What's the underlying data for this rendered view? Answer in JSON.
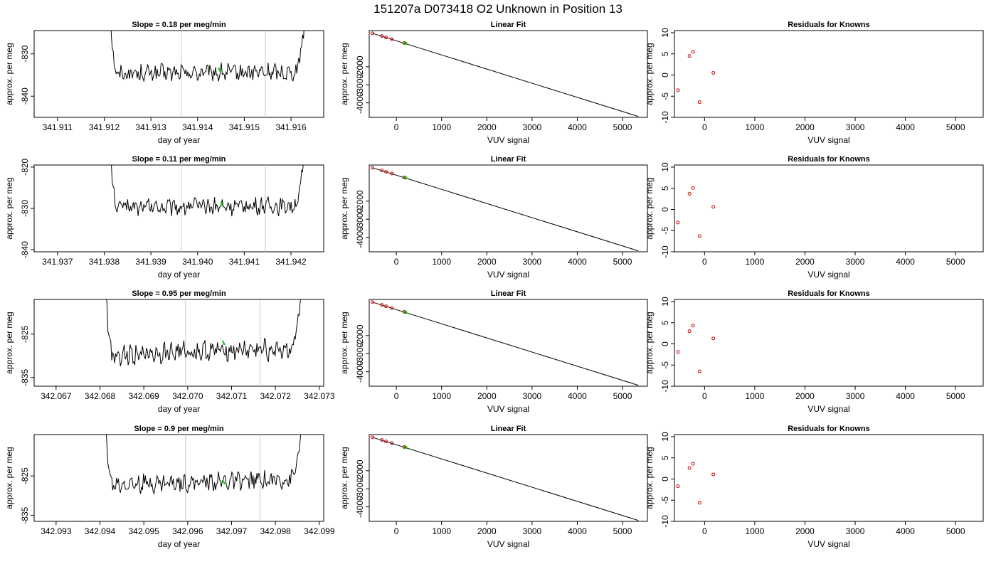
{
  "title": "151207a      D073418   O2 Unknown in Position  13",
  "chart_data": [
    {
      "type": "line",
      "row": 1,
      "col": 1,
      "title": "Slope =  0.18  per meg/min",
      "xlabel": "day of year",
      "ylabel": "approx. per meg",
      "xlim": [
        341.9105,
        341.9167
      ],
      "ylim": [
        -845,
        -824.5
      ],
      "xticks": [
        "341.911",
        "341.912",
        "341.913",
        "341.914",
        "341.915",
        "341.916"
      ],
      "yticks": [
        "-840",
        "-830"
      ],
      "vlines": [
        341.91365,
        341.91545
      ],
      "marker": {
        "x": 341.91447,
        "y": -833.8
      },
      "series": [
        {
          "x_start": 341.91205,
          "x_end": 341.91635,
          "base": -834.5,
          "amp": 1.4,
          "drift": 0.18
        }
      ]
    },
    {
      "type": "line",
      "row": 1,
      "col": 2,
      "title": "Linear Fit",
      "xlabel": "VUV signal",
      "ylabel": "approx. per meg",
      "xlim": [
        -600,
        5550
      ],
      "ylim": [
        -4800,
        0
      ],
      "xticks": [
        "0",
        "1000",
        "2000",
        "3000",
        "4000",
        "5000"
      ],
      "yticks": [
        "-4000",
        "-3000",
        "-2000"
      ],
      "line": [
        [
          -530,
          -150
        ],
        [
          5350,
          -4750
        ]
      ],
      "knowns": [
        {
          "x": -530,
          "y": -150
        },
        {
          "x": -320,
          "y": -300
        },
        {
          "x": -230,
          "y": -380
        },
        {
          "x": -100,
          "y": -470
        },
        {
          "x": 175,
          "y": -690
        }
      ],
      "unknown": {
        "x": 200,
        "y": -700
      }
    },
    {
      "type": "scatter",
      "row": 1,
      "col": 3,
      "title": "Residuals for Knowns",
      "xlabel": "VUV signal",
      "ylabel": "approx. per meg",
      "xlim": [
        -600,
        5550
      ],
      "ylim": [
        -10,
        10.5
      ],
      "xticks": [
        "0",
        "1000",
        "2000",
        "3000",
        "4000",
        "5000"
      ],
      "yticks": [
        "-10",
        "-5",
        "0",
        "5",
        "10"
      ],
      "points": [
        {
          "x": -530,
          "y": -3.6
        },
        {
          "x": -300,
          "y": 4.5
        },
        {
          "x": -230,
          "y": 5.5
        },
        {
          "x": -100,
          "y": -6.4
        },
        {
          "x": 175,
          "y": 0.5
        }
      ]
    },
    {
      "type": "line",
      "row": 2,
      "col": 1,
      "title": "Slope =  0.11  per meg/min",
      "xlabel": "day of year",
      "ylabel": "approx. per meg",
      "xlim": [
        341.9365,
        341.9427
      ],
      "ylim": [
        -840.5,
        -819.5
      ],
      "xticks": [
        "341.937",
        "341.938",
        "341.939",
        "341.940",
        "341.941",
        "341.942"
      ],
      "yticks": [
        "-840",
        "-830",
        "-820"
      ],
      "vlines": [
        341.93965,
        341.94145
      ],
      "marker": {
        "x": 341.94052,
        "y": -829
      },
      "series": [
        {
          "x_start": 341.93805,
          "x_end": 341.94235,
          "base": -829.5,
          "amp": 1.4,
          "drift": 0.11
        }
      ]
    },
    {
      "type": "line",
      "row": 2,
      "col": 2,
      "title": "Linear Fit",
      "xlabel": "VUV signal",
      "ylabel": "approx. per meg",
      "xlim": [
        -600,
        5550
      ],
      "ylim": [
        -4800,
        0
      ],
      "xticks": [
        "0",
        "1000",
        "2000",
        "3000",
        "4000",
        "5000"
      ],
      "yticks": [
        "-4000",
        "-3000",
        "-2000"
      ],
      "line": [
        [
          -530,
          -150
        ],
        [
          5350,
          -4750
        ]
      ],
      "knowns": [
        {
          "x": -530,
          "y": -150
        },
        {
          "x": -320,
          "y": -300
        },
        {
          "x": -230,
          "y": -380
        },
        {
          "x": -100,
          "y": -470
        },
        {
          "x": 175,
          "y": -690
        }
      ],
      "unknown": {
        "x": 200,
        "y": -700
      }
    },
    {
      "type": "scatter",
      "row": 2,
      "col": 3,
      "title": "Residuals for Knowns",
      "xlabel": "VUV signal",
      "ylabel": "approx. per meg",
      "xlim": [
        -600,
        5550
      ],
      "ylim": [
        -10,
        10.5
      ],
      "xticks": [
        "0",
        "1000",
        "2000",
        "3000",
        "4000",
        "5000"
      ],
      "yticks": [
        "-10",
        "-5",
        "0",
        "5",
        "10"
      ],
      "points": [
        {
          "x": -530,
          "y": -3.1
        },
        {
          "x": -300,
          "y": 3.7
        },
        {
          "x": -230,
          "y": 5.1
        },
        {
          "x": -100,
          "y": -6.3
        },
        {
          "x": 175,
          "y": 0.6
        }
      ]
    },
    {
      "type": "line",
      "row": 3,
      "col": 1,
      "title": "Slope =  0.95  per meg/min",
      "xlabel": "day of year",
      "ylabel": "approx. per meg",
      "xlim": [
        342.0665,
        342.0731
      ],
      "ylim": [
        -837,
        -817
      ],
      "xticks": [
        "342.067",
        "342.068",
        "342.069",
        "342.070",
        "342.071",
        "342.072",
        "342.073"
      ],
      "yticks": [
        "-835",
        "-825"
      ],
      "vlines": [
        342.06995,
        342.07165
      ],
      "marker": {
        "x": 342.07082,
        "y": -827
      },
      "series": [
        {
          "x_start": 342.06805,
          "x_end": 342.07265,
          "base": -829,
          "amp": 1.6,
          "drift": 0.95
        }
      ]
    },
    {
      "type": "line",
      "row": 3,
      "col": 2,
      "title": "Linear Fit",
      "xlabel": "VUV signal",
      "ylabel": "approx. per meg",
      "xlim": [
        -600,
        5550
      ],
      "ylim": [
        -4800,
        0
      ],
      "xticks": [
        "0",
        "1000",
        "2000",
        "3000",
        "4000",
        "5000"
      ],
      "yticks": [
        "-4000",
        "-3000",
        "-2000"
      ],
      "line": [
        [
          -530,
          -150
        ],
        [
          5350,
          -4750
        ]
      ],
      "knowns": [
        {
          "x": -530,
          "y": -150
        },
        {
          "x": -320,
          "y": -300
        },
        {
          "x": -230,
          "y": -380
        },
        {
          "x": -100,
          "y": -470
        },
        {
          "x": 175,
          "y": -690
        }
      ],
      "unknown": {
        "x": 200,
        "y": -700
      }
    },
    {
      "type": "scatter",
      "row": 3,
      "col": 3,
      "title": "Residuals for Knowns",
      "xlabel": "VUV signal",
      "ylabel": "approx. per meg",
      "xlim": [
        -600,
        5550
      ],
      "ylim": [
        -10,
        10.5
      ],
      "xticks": [
        "0",
        "1000",
        "2000",
        "3000",
        "4000",
        "5000"
      ],
      "yticks": [
        "-10",
        "-5",
        "0",
        "5",
        "10"
      ],
      "points": [
        {
          "x": -530,
          "y": -1.9
        },
        {
          "x": -300,
          "y": 3.0
        },
        {
          "x": -230,
          "y": 4.3
        },
        {
          "x": -100,
          "y": -6.5
        },
        {
          "x": 175,
          "y": 1.3
        }
      ]
    },
    {
      "type": "line",
      "row": 4,
      "col": 1,
      "title": "Slope =  0.9  per meg/min",
      "xlabel": "day of year",
      "ylabel": "approx. per meg",
      "xlim": [
        342.0925,
        342.0991
      ],
      "ylim": [
        -836.5,
        -814.5
      ],
      "xticks": [
        "342.093",
        "342.094",
        "342.095",
        "342.096",
        "342.097",
        "342.098",
        "342.099"
      ],
      "yticks": [
        "-835",
        "-825"
      ],
      "vlines": [
        342.09595,
        342.09765
      ],
      "marker": {
        "x": 342.09682,
        "y": -826.5
      },
      "series": [
        {
          "x_start": 342.09405,
          "x_end": 342.09865,
          "base": -826.5,
          "amp": 1.5,
          "drift": 0.9
        }
      ]
    },
    {
      "type": "line",
      "row": 4,
      "col": 2,
      "title": "Linear Fit",
      "xlabel": "VUV signal",
      "ylabel": "approx. per meg",
      "xlim": [
        -600,
        5550
      ],
      "ylim": [
        -4800,
        0
      ],
      "xticks": [
        "0",
        "1000",
        "2000",
        "3000",
        "4000",
        "5000"
      ],
      "yticks": [
        "-4000",
        "-3000",
        "-2000"
      ],
      "line": [
        [
          -530,
          -150
        ],
        [
          5350,
          -4750
        ]
      ],
      "knowns": [
        {
          "x": -530,
          "y": -150
        },
        {
          "x": -320,
          "y": -300
        },
        {
          "x": -230,
          "y": -380
        },
        {
          "x": -100,
          "y": -470
        },
        {
          "x": 175,
          "y": -690
        }
      ],
      "unknown": {
        "x": 200,
        "y": -700
      }
    },
    {
      "type": "scatter",
      "row": 4,
      "col": 3,
      "title": "Residuals for Knowns",
      "xlabel": "VUV signal",
      "ylabel": "approx. per meg",
      "xlim": [
        -600,
        5550
      ],
      "ylim": [
        -10,
        10.5
      ],
      "xticks": [
        "0",
        "1000",
        "2000",
        "3000",
        "4000",
        "5000"
      ],
      "yticks": [
        "-10",
        "-5",
        "0",
        "5",
        "10"
      ],
      "points": [
        {
          "x": -530,
          "y": -1.7
        },
        {
          "x": -300,
          "y": 2.6
        },
        {
          "x": -230,
          "y": 3.6
        },
        {
          "x": -100,
          "y": -5.6
        },
        {
          "x": 175,
          "y": 1.1
        }
      ]
    }
  ],
  "colors": {
    "known_point": "#cc0000",
    "unknown_point": "#00cc00",
    "vline": "#c8c8c8",
    "line": "#000000"
  }
}
